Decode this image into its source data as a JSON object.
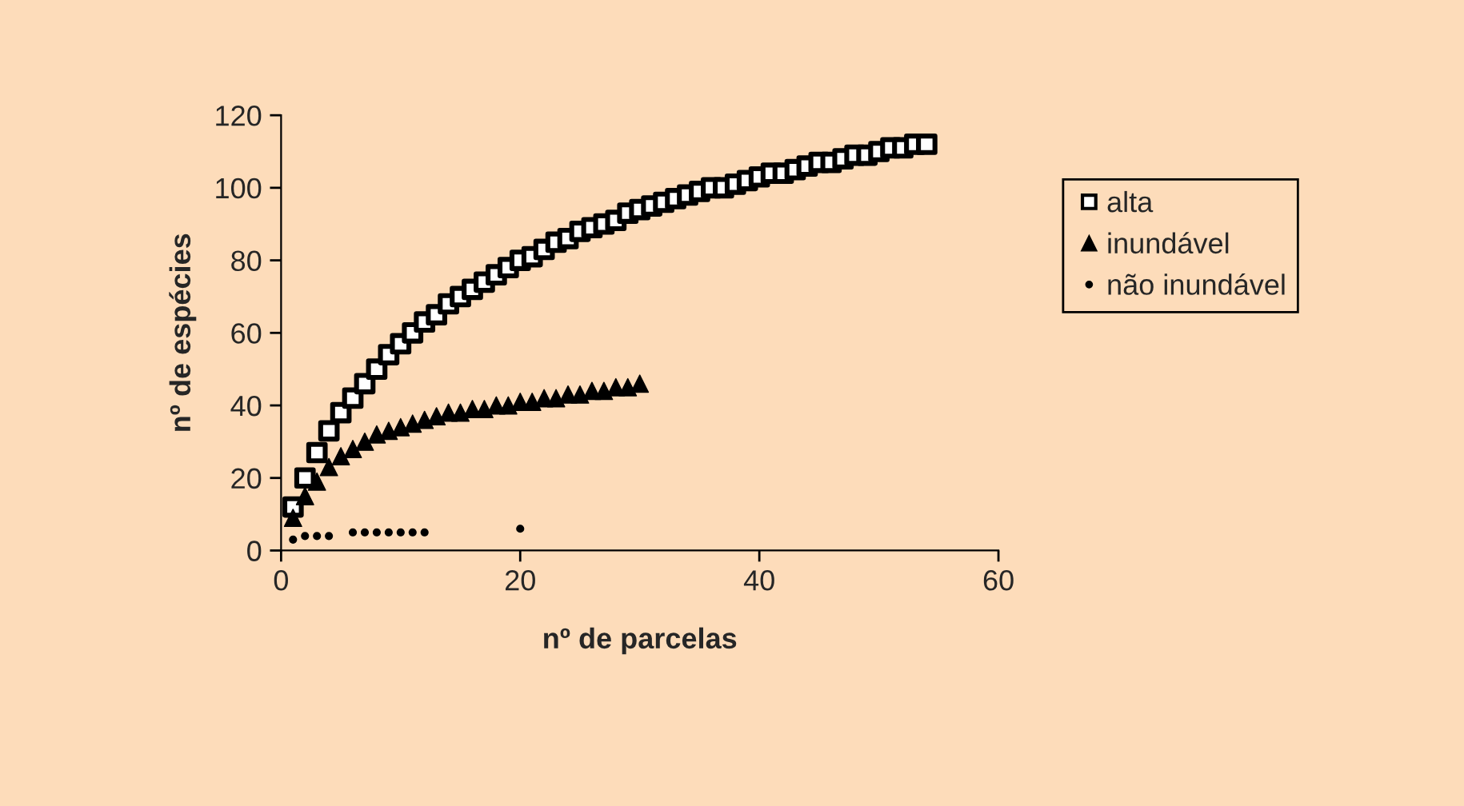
{
  "chart_data": {
    "type": "scatter",
    "xlabel": "nº de parcelas",
    "ylabel": "nº de espécies",
    "xlim": [
      0,
      60
    ],
    "xticks": [
      0,
      20,
      40,
      60
    ],
    "ylim": [
      0,
      120
    ],
    "yticks": [
      0,
      20,
      40,
      60,
      80,
      100,
      120
    ],
    "grid": false,
    "legend": "right",
    "series": [
      {
        "name": "alta",
        "color": "#000000",
        "marker": "square",
        "x": [
          1,
          2,
          3,
          4,
          5,
          6,
          7,
          8,
          9,
          10,
          11,
          12,
          13,
          14,
          15,
          16,
          17,
          18,
          19,
          20,
          21,
          22,
          23,
          24,
          25,
          26,
          27,
          28,
          29,
          30,
          31,
          32,
          33,
          34,
          35,
          36,
          37,
          38,
          39,
          40,
          41,
          42,
          43,
          44,
          45,
          46,
          47,
          48,
          49,
          50,
          51,
          52,
          53,
          54
        ],
        "values": [
          12,
          20,
          27,
          33,
          38,
          42,
          46,
          50,
          54,
          57,
          60,
          63,
          65,
          68,
          70,
          72,
          74,
          76,
          78,
          80,
          81,
          83,
          85,
          86,
          88,
          89,
          90,
          91,
          93,
          94,
          95,
          96,
          97,
          98,
          99,
          100,
          100,
          101,
          102,
          103,
          104,
          104,
          105,
          106,
          107,
          107,
          108,
          109,
          109,
          110,
          111,
          111,
          112,
          112
        ]
      },
      {
        "name": "inundável",
        "color": "#000000",
        "marker": "triangle",
        "x": [
          1,
          2,
          3,
          4,
          5,
          6,
          7,
          8,
          9,
          10,
          11,
          12,
          13,
          14,
          15,
          16,
          17,
          18,
          19,
          20,
          21,
          22,
          23,
          24,
          25,
          26,
          27,
          28,
          29,
          30
        ],
        "values": [
          9,
          15,
          19,
          23,
          26,
          28,
          30,
          32,
          33,
          34,
          35,
          36,
          37,
          38,
          38,
          39,
          39,
          40,
          40,
          41,
          41,
          42,
          42,
          43,
          43,
          44,
          44,
          45,
          45,
          46
        ]
      },
      {
        "name": "não inundável",
        "color": "#000000",
        "marker": "circle",
        "x": [
          1,
          2,
          3,
          4,
          6,
          7,
          8,
          9,
          10,
          11,
          12,
          20
        ],
        "values": [
          3,
          4,
          4,
          4,
          5,
          5,
          5,
          5,
          5,
          5,
          5,
          6
        ]
      }
    ]
  }
}
